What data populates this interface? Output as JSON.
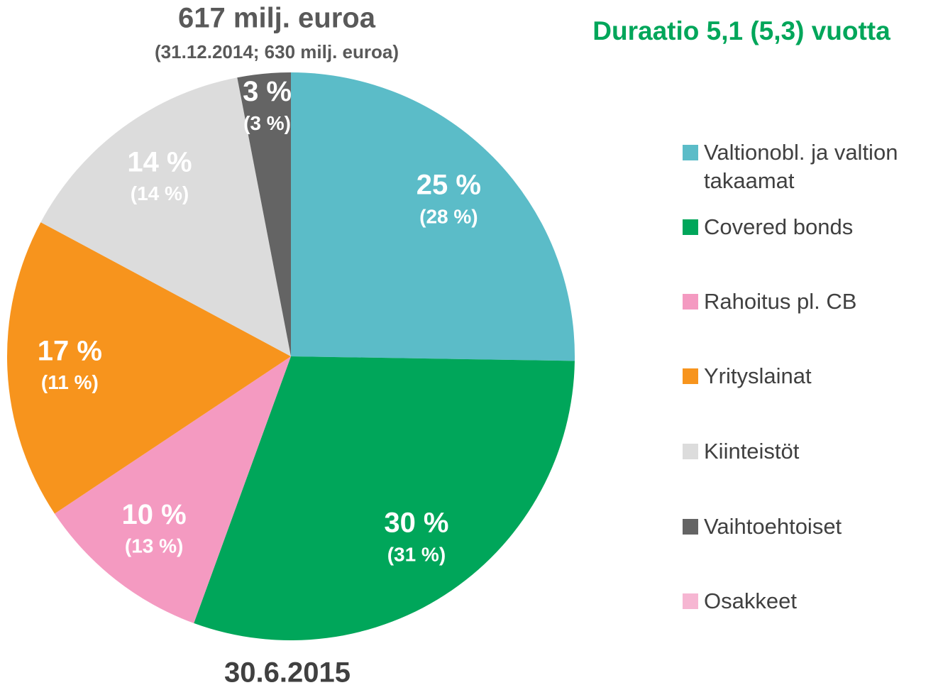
{
  "chart_data": {
    "type": "pie",
    "title": "617 milj. euroa",
    "subtitle": "(31.12.2014; 630 milj. euroa)",
    "annotation": "Duraatio 5,1 (5,3) vuotta",
    "x_label": "30.6.2015",
    "categories": [
      "Valtionobl. ja valtion takaamat",
      "Covered bonds",
      "Rahoitus pl. CB",
      "Yrityslainat",
      "Kiinteistöt",
      "Vaihtoehtoiset",
      "Osakkeet"
    ],
    "values": [
      25,
      30,
      10,
      17,
      14,
      3,
      0
    ],
    "value_labels": [
      "25 %",
      "30 %",
      "10 %",
      "17 %",
      "14 %",
      "3 %",
      null
    ],
    "previous_values": [
      28,
      31,
      13,
      11,
      14,
      3,
      0
    ],
    "previous_value_labels": [
      "(28 %)",
      "(31 %)",
      "(13 %)",
      "(11 %)",
      "(14 %)",
      "(3 %)",
      null
    ],
    "colors": [
      "#5bbcc8",
      "#00a65a",
      "#f49ac1",
      "#f7941d",
      "#dcdcdc",
      "#646464",
      "#f6b6d2"
    ]
  }
}
